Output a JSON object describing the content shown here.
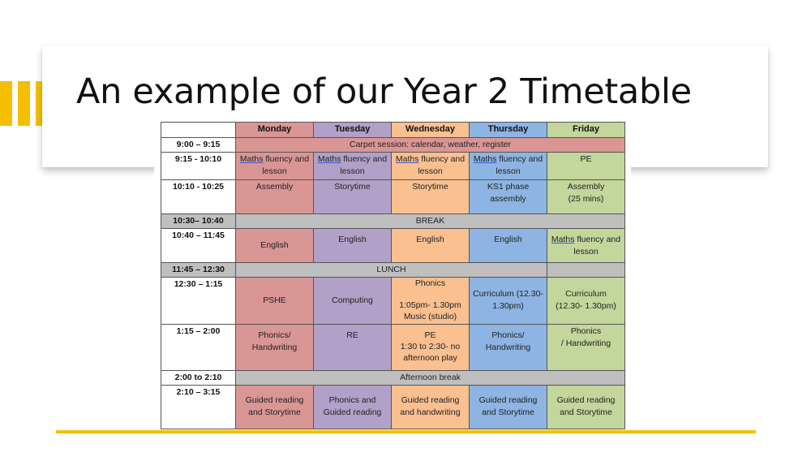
{
  "slide": {
    "title": "An example of our Year 2 Timetable",
    "accent_color": "#f6be00"
  },
  "timetable": {
    "days": [
      "Monday",
      "Tuesday",
      "Wednesday",
      "Thursday",
      "Friday"
    ],
    "day_colors": {
      "monday": "#d99694",
      "tuesday": "#b1a0c7",
      "wednesday": "#fac090",
      "thursday": "#8db4e2",
      "friday": "#c3d69b",
      "break": "#bfbfbf"
    },
    "rows": {
      "r1": {
        "time": "9:00 – 9:15",
        "all": "Carpet session: calendar, weather, register"
      },
      "r2": {
        "time": "9:15 - 10:10",
        "mon_a": "Maths",
        "mon_b": " fluency and lesson",
        "tue_a": "Maths",
        "tue_b": " fluency and lesson",
        "wed_a": "Maths",
        "wed_b": " fluency and lesson",
        "thu_a": "Maths",
        "thu_b": " fluency and lesson",
        "fri": "PE"
      },
      "r3": {
        "time": "10:10 - 10:25",
        "mon": "Assembly",
        "tue": "Storytime",
        "wed": "Storytime",
        "thu": "KS1 phase\nassembly",
        "fri": "Assembly\n(25 mins)"
      },
      "r4": {
        "time": "10:30– 10:40",
        "all": "BREAK"
      },
      "r5": {
        "time": "10:40 – 11:45",
        "mon": "English",
        "tue": "English",
        "wed": "English",
        "thu": "English",
        "fri_a": "Maths",
        "fri_b": " fluency and lesson"
      },
      "r6": {
        "time": "11:45 – 12:30",
        "all": "LUNCH"
      },
      "r7": {
        "time": "12:30 – 1:15",
        "mon": "PSHE",
        "tue": "Computing",
        "wed": "Phonics\n\n1:05pm- 1.30pm\nMusic (studio)",
        "thu": "Curriculum (12.30-\n1.30pm)",
        "fri": "Curriculum\n(12.30- 1.30pm)"
      },
      "r8": {
        "time": "1:15 – 2:00",
        "mon": "Phonics/\nHandwriting",
        "tue": "RE",
        "wed": "PE\n1:30 to 2:30- no\nafternoon play",
        "thu": "Phonics/\nHandwriting",
        "fri": "Phonics\n/ Handwriting"
      },
      "r9": {
        "time": "2:00 to 2:10",
        "all": "Afternoon break"
      },
      "r10": {
        "time": "2:10 – 3:15",
        "mon": "Guided reading\nand Storytime",
        "tue": "Phonics and\nGuided reading",
        "wed": "Guided reading\nand handwriting",
        "thu": "Guided reading\nand Storytime",
        "fri": "Guided reading\nand Storytime"
      }
    }
  }
}
